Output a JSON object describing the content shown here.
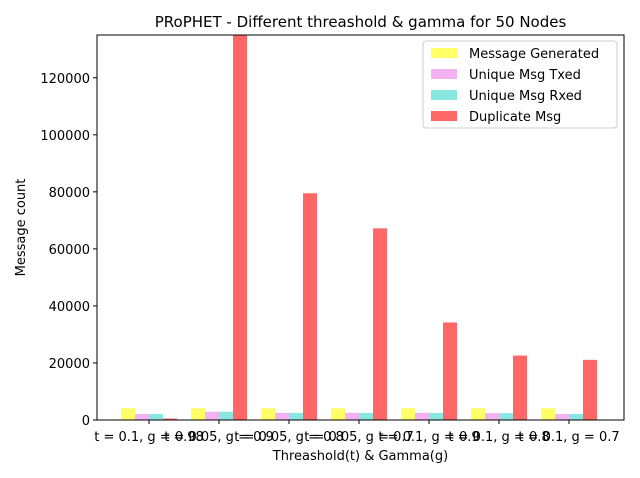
{
  "chart_data": {
    "type": "bar",
    "title": "PRoPHET - Different threashold & gamma for 50 Nodes",
    "xlabel": "Threashold(t) & Gamma(g)",
    "ylabel": "Message count",
    "ylim": [
      0,
      135000
    ],
    "yticks": [
      0,
      20000,
      40000,
      60000,
      80000,
      100000,
      120000
    ],
    "categories": [
      "t = 0.1, g = 0.98",
      "t = 0.05, g = 0.9",
      "t = 0.05, g = 0.8",
      "t = 0.05, g = 0.7",
      "t = 0.1, g = 0.9",
      "t = 0.1, g = 0.8",
      "t = 0.1, g = 0.7"
    ],
    "series": [
      {
        "name": "Message Generated",
        "color": "#ffff66",
        "values": [
          4100,
          4100,
          4100,
          4100,
          4100,
          4100,
          4100
        ]
      },
      {
        "name": "Unique Msg Txed",
        "color": "#f3b3f3",
        "values": [
          2100,
          2900,
          2500,
          2500,
          2500,
          2400,
          2100
        ]
      },
      {
        "name": "Unique Msg Rxed",
        "color": "#88e8e0",
        "values": [
          2100,
          2900,
          2500,
          2500,
          2500,
          2400,
          2100
        ]
      },
      {
        "name": "Duplicate Msg",
        "color": "#ff6666",
        "values": [
          500,
          135000,
          79500,
          67200,
          34200,
          22600,
          21100
        ]
      }
    ],
    "legend_position": "top-right",
    "grid": false
  }
}
